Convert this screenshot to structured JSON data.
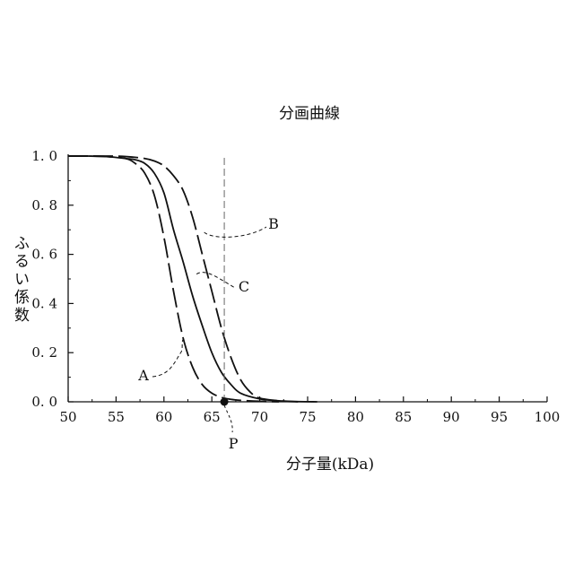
{
  "chart_data": {
    "type": "line",
    "title": "分画曲線",
    "xlabel": "分子量(kDa)",
    "ylabel": "ふるい係数",
    "xlim": [
      50,
      100
    ],
    "ylim": [
      0,
      1
    ],
    "x_ticks": [
      "50",
      "55",
      "60",
      "65",
      "70",
      "75",
      "80",
      "85",
      "90",
      "95",
      "100"
    ],
    "y_ticks": [
      "0. 0",
      "0. 2",
      "0. 4",
      "0. 6",
      "0. 8",
      "1. 0"
    ],
    "grid": false,
    "legend": "none",
    "series": [
      {
        "name": "A",
        "style": "dashed",
        "x": [
          50,
          52,
          54,
          56,
          57,
          58,
          59,
          60,
          61,
          62,
          63,
          64,
          65,
          66,
          67,
          68,
          70,
          72
        ],
        "y": [
          1.0,
          1.0,
          0.998,
          0.99,
          0.97,
          0.93,
          0.84,
          0.67,
          0.45,
          0.26,
          0.14,
          0.07,
          0.035,
          0.018,
          0.01,
          0.006,
          0.002,
          0.0
        ]
      },
      {
        "name": "C",
        "style": "solid",
        "x": [
          50,
          52,
          54,
          56,
          57,
          58,
          59,
          60,
          61,
          62,
          63,
          64,
          65,
          66,
          67,
          68,
          70,
          72,
          74,
          76
        ],
        "y": [
          1.0,
          1.0,
          0.998,
          0.99,
          0.985,
          0.97,
          0.93,
          0.85,
          0.7,
          0.57,
          0.43,
          0.31,
          0.2,
          0.12,
          0.07,
          0.035,
          0.012,
          0.004,
          0.001,
          0.0
        ]
      },
      {
        "name": "B",
        "style": "dashed",
        "x": [
          50,
          52,
          54,
          56,
          58,
          59,
          60,
          61,
          62,
          63,
          64,
          65,
          66,
          67,
          68,
          69,
          70,
          72,
          74
        ],
        "y": [
          1.0,
          1.0,
          1.0,
          0.998,
          0.99,
          0.98,
          0.96,
          0.92,
          0.86,
          0.75,
          0.6,
          0.45,
          0.3,
          0.18,
          0.09,
          0.04,
          0.015,
          0.004,
          0.0
        ]
      }
    ],
    "vertical_line": {
      "x": 66.3,
      "style": "dashed"
    },
    "marker": {
      "label": "P",
      "x": 66.3,
      "y": 0.0
    },
    "annotations": [
      {
        "text": "A",
        "series": "A",
        "at_x": 62.0,
        "at_y": 0.24
      },
      {
        "text": "B",
        "series": "B",
        "at_x": 64.2,
        "at_y": 0.69
      },
      {
        "text": "C",
        "series": "C",
        "at_x": 63.4,
        "at_y": 0.52
      }
    ]
  }
}
